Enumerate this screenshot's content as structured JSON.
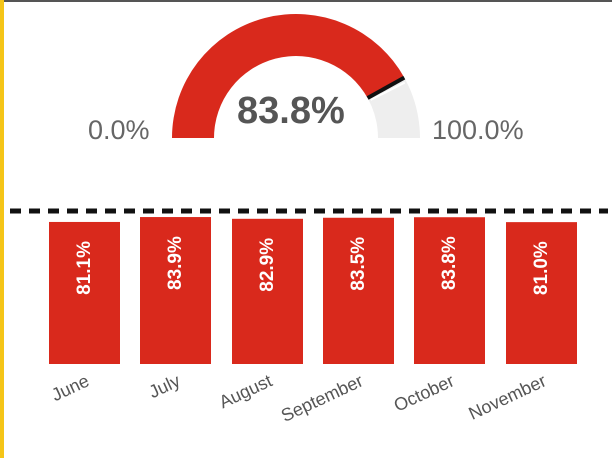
{
  "gauge": {
    "value_label": "83.8%",
    "min_label": "0.0%",
    "max_label": "100.0%",
    "value": 83.8,
    "min": 0,
    "max": 100
  },
  "chart_data": {
    "type": "bar",
    "categories": [
      "June",
      "July",
      "August",
      "September",
      "October",
      "November"
    ],
    "values": [
      81.1,
      83.9,
      82.9,
      83.5,
      83.8,
      81.0
    ],
    "data_labels": [
      "81.1%",
      "83.9%",
      "82.9%",
      "83.5%",
      "83.8%",
      "81.0%"
    ],
    "title": "",
    "xlabel": "",
    "ylabel": "",
    "reference_line": "dashed target line at top",
    "grid": false
  },
  "colors": {
    "accent": "#d9291c",
    "track": "#eeeeee",
    "text": "#666666",
    "left_stripe": "#f5c518",
    "marker": "#111111"
  }
}
